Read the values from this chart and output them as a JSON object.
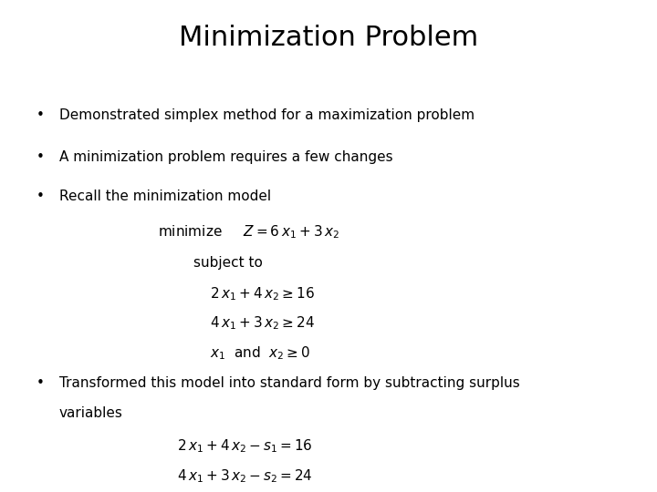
{
  "title": "Minimization Problem",
  "background_color": "#ffffff",
  "text_color": "#000000",
  "title_fontsize": 22,
  "body_fontsize": 11,
  "math_fontsize": 11,
  "bullet1": "Demonstrated simplex method for a maximization problem",
  "bullet2": "A minimization problem requires a few changes",
  "bullet3": "Recall the minimization model",
  "bullet4_line1": "Transformed this model into standard form by subtracting surplus",
  "bullet4_line2": "variables"
}
